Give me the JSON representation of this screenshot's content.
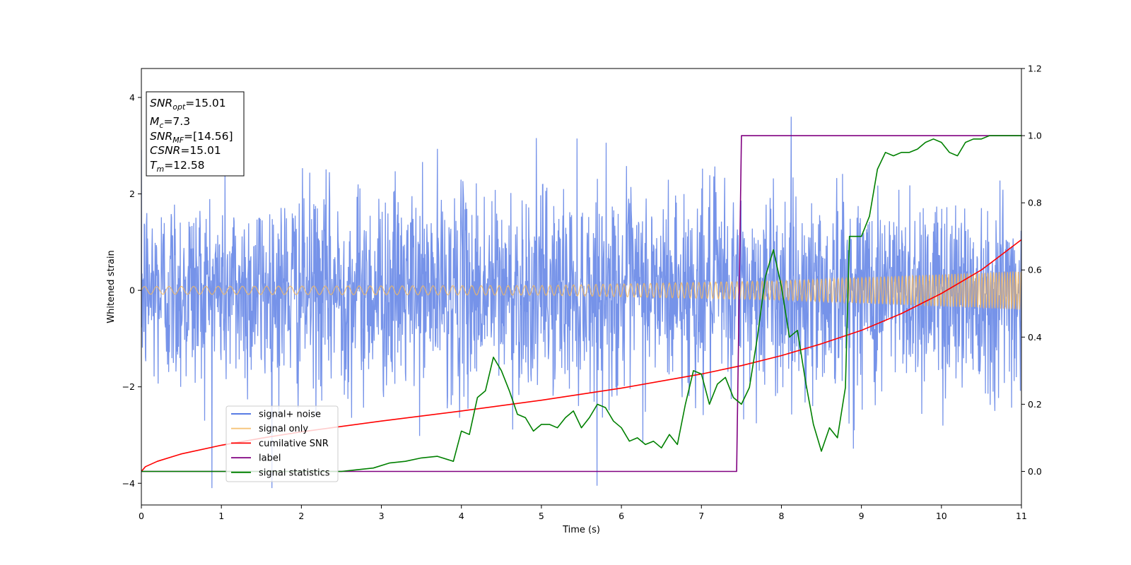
{
  "chart_data": {
    "type": "line",
    "xlabel": "Time (s)",
    "ylabel": "Whitened strain",
    "xlim": [
      0,
      11
    ],
    "ylim": [
      -4.45,
      4.6
    ],
    "ylim_right": [
      -0.1,
      1.2
    ],
    "x_ticks": [
      0,
      1,
      2,
      3,
      4,
      5,
      6,
      7,
      8,
      9,
      10,
      11
    ],
    "y_ticks": [
      -4,
      -2,
      0,
      2,
      4
    ],
    "y_ticks_right": [
      0.0,
      0.2,
      0.4,
      0.6,
      0.8,
      1.0,
      1.2
    ],
    "grid": false,
    "legend_position": "lower-left",
    "annotation": {
      "lines": [
        {
          "base": "SNR",
          "sub": "opt",
          "rest": "=15.01"
        },
        {
          "base": "M",
          "sub": "c",
          "rest": "=7.3"
        },
        {
          "base": "SNR",
          "sub": "MF",
          "rest": "=[14.56]"
        },
        {
          "base": "CSNR",
          "sub": "",
          "rest": "=15.01"
        },
        {
          "base": "T",
          "sub": "m",
          "rest": "=12.58"
        }
      ]
    },
    "series": [
      {
        "name": "signal+ noise",
        "color": "#4169e1",
        "axis": "left",
        "kind": "noise",
        "envelope": {
          "x": [
            0,
            11
          ],
          "amplitude_std": 1.05,
          "sample_rate": 220
        }
      },
      {
        "name": "signal only",
        "color": "#f4b860",
        "axis": "left",
        "kind": "chirp",
        "amplitude": {
          "x": [
            0,
            5,
            8,
            11
          ],
          "y": [
            0.08,
            0.1,
            0.2,
            0.4
          ]
        },
        "frequency_start": 6.5,
        "frequency_end": 30
      },
      {
        "name": "cumilative SNR",
        "color": "#ff0000",
        "axis": "right",
        "x": [
          0,
          0.05,
          0.2,
          0.5,
          1,
          1.5,
          2,
          3,
          4,
          5,
          6,
          7,
          7.5,
          8,
          8.5,
          9,
          9.5,
          10,
          10.5,
          11
        ],
        "y": [
          0.0,
          0.014,
          0.03,
          0.052,
          0.078,
          0.099,
          0.118,
          0.15,
          0.18,
          0.212,
          0.248,
          0.29,
          0.315,
          0.345,
          0.38,
          0.42,
          0.47,
          0.53,
          0.6,
          0.69
        ]
      },
      {
        "name": "label",
        "color": "#800080",
        "axis": "right",
        "x": [
          0,
          7.44,
          7.5,
          11
        ],
        "y": [
          0,
          0,
          1,
          1
        ]
      },
      {
        "name": "signal statistics",
        "color": "#008000",
        "axis": "right",
        "x": [
          0,
          0.5,
          1,
          1.5,
          2,
          2.5,
          2.7,
          2.9,
          3.1,
          3.3,
          3.5,
          3.7,
          3.9,
          4.0,
          4.1,
          4.2,
          4.3,
          4.4,
          4.5,
          4.6,
          4.7,
          4.8,
          4.9,
          5.0,
          5.1,
          5.2,
          5.3,
          5.4,
          5.5,
          5.6,
          5.7,
          5.8,
          5.9,
          6.0,
          6.1,
          6.2,
          6.3,
          6.4,
          6.5,
          6.6,
          6.7,
          6.8,
          6.9,
          7.0,
          7.1,
          7.2,
          7.3,
          7.4,
          7.5,
          7.6,
          7.7,
          7.8,
          7.9,
          8.0,
          8.1,
          8.2,
          8.3,
          8.4,
          8.5,
          8.6,
          8.7,
          8.8,
          8.85,
          8.9,
          9.0,
          9.1,
          9.2,
          9.3,
          9.4,
          9.5,
          9.6,
          9.7,
          9.8,
          9.9,
          10.0,
          10.1,
          10.2,
          10.3,
          10.4,
          10.5,
          10.6,
          10.7,
          10.8,
          10.9,
          11.0
        ],
        "y": [
          0.0,
          0.0,
          0.0,
          0.0,
          0.0,
          0.0,
          0.005,
          0.01,
          0.025,
          0.03,
          0.04,
          0.045,
          0.03,
          0.12,
          0.11,
          0.22,
          0.24,
          0.34,
          0.3,
          0.24,
          0.17,
          0.16,
          0.12,
          0.14,
          0.14,
          0.13,
          0.16,
          0.18,
          0.13,
          0.16,
          0.2,
          0.19,
          0.15,
          0.13,
          0.09,
          0.1,
          0.08,
          0.09,
          0.07,
          0.11,
          0.08,
          0.2,
          0.3,
          0.29,
          0.2,
          0.26,
          0.28,
          0.22,
          0.2,
          0.25,
          0.4,
          0.58,
          0.66,
          0.55,
          0.4,
          0.42,
          0.27,
          0.14,
          0.06,
          0.13,
          0.1,
          0.25,
          0.7,
          0.7,
          0.7,
          0.76,
          0.9,
          0.95,
          0.94,
          0.95,
          0.95,
          0.96,
          0.98,
          0.99,
          0.98,
          0.95,
          0.94,
          0.98,
          0.99,
          0.99,
          1.0,
          1.0,
          1.0,
          1.0,
          1.0
        ]
      }
    ]
  }
}
